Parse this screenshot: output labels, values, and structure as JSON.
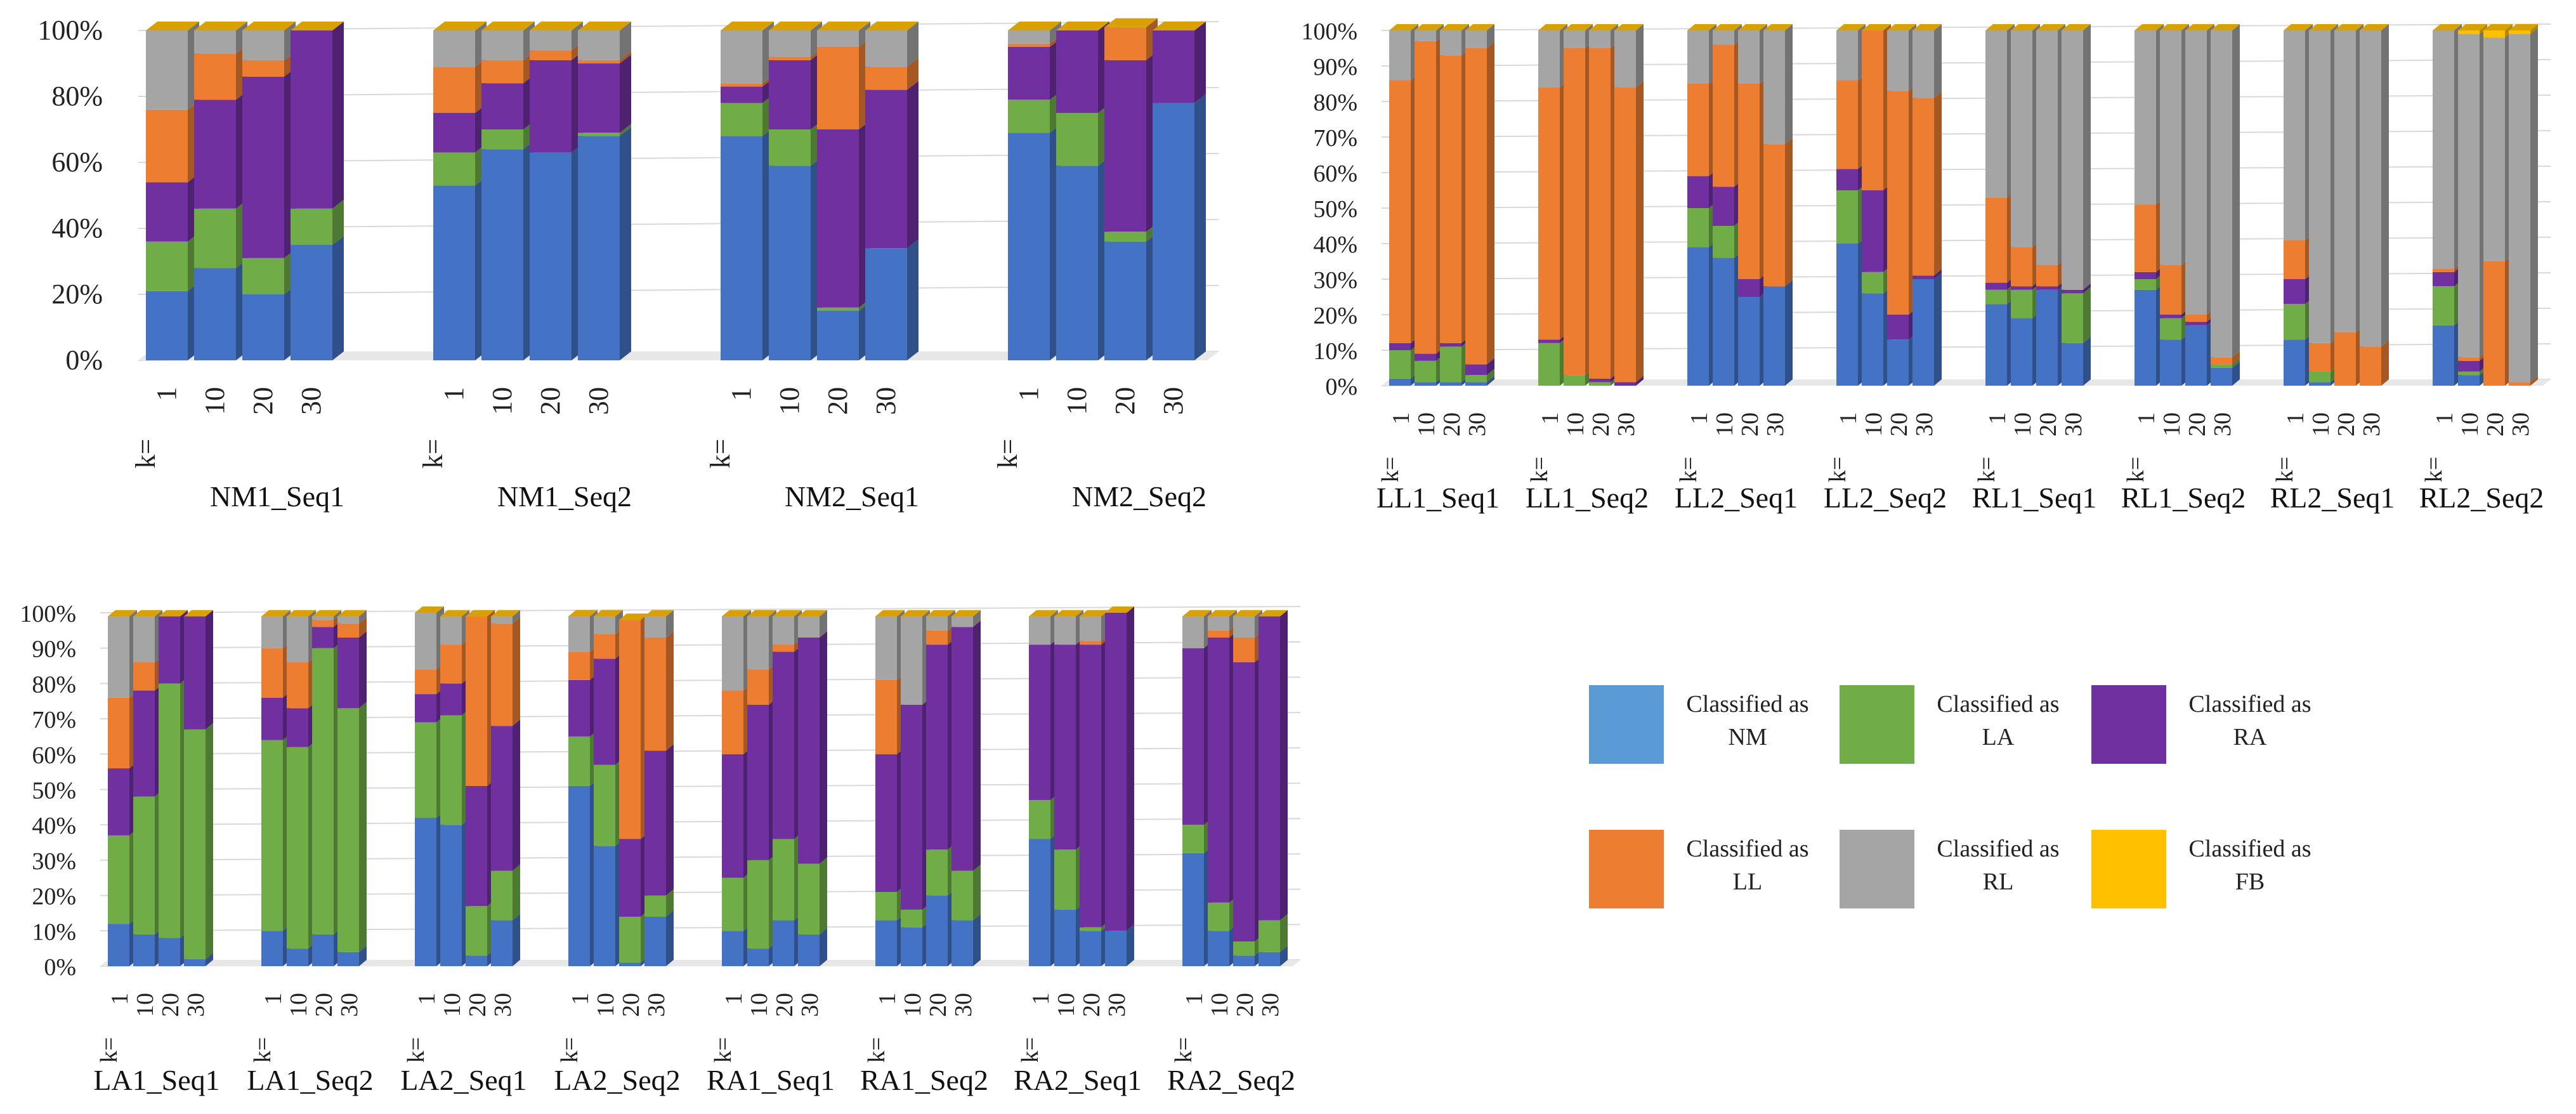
{
  "legend": [
    {
      "line1": "Classified as",
      "line2": "NM",
      "color": "#5B9BD5"
    },
    {
      "line1": "Classified as",
      "line2": "LA",
      "color": "#70AD47"
    },
    {
      "line1": "Classified as",
      "line2": "RA",
      "color": "#7030A0"
    },
    {
      "line1": "Classified as",
      "line2": "LL",
      "color": "#ED7D31"
    },
    {
      "line1": "Classified as",
      "line2": "RL",
      "color": "#A5A5A5"
    },
    {
      "line1": "Classified as",
      "line2": "FB",
      "color": "#FFC000"
    }
  ],
  "chart_data": [
    {
      "type": "bar",
      "stacked": true,
      "title": "",
      "ylim": [
        0,
        100
      ],
      "yticks": [
        "0%",
        "20%",
        "40%",
        "60%",
        "80%",
        "100%"
      ],
      "k_prefix": "k=",
      "k_labels": [
        "1",
        "10",
        "20",
        "30"
      ],
      "series_names": [
        "NM",
        "LA",
        "RA",
        "LL",
        "RL",
        "FB"
      ],
      "series_colors": [
        "#4472C4",
        "#70AD47",
        "#7030A0",
        "#ED7D31",
        "#A5A5A5",
        "#FFC000"
      ],
      "groups": [
        {
          "label": "NM1_Seq1",
          "bars": [
            [
              21,
              15,
              18,
              22,
              24,
              0
            ],
            [
              28,
              18,
              33,
              14,
              7,
              0
            ],
            [
              20,
              11,
              55,
              5,
              9,
              0
            ],
            [
              35,
              11,
              54,
              0,
              0,
              0
            ]
          ]
        },
        {
          "label": "NM1_Seq2",
          "bars": [
            [
              53,
              10,
              12,
              14,
              11,
              0
            ],
            [
              64,
              6,
              14,
              7,
              9,
              0
            ],
            [
              63,
              0,
              28,
              3,
              6,
              0
            ],
            [
              68,
              1,
              21,
              1,
              9,
              0
            ]
          ]
        },
        {
          "label": "NM2_Seq1",
          "bars": [
            [
              68,
              10,
              5,
              1,
              16,
              0
            ],
            [
              59,
              11,
              21,
              1,
              8,
              0
            ],
            [
              15,
              1,
              54,
              25,
              5,
              0
            ],
            [
              34,
              0,
              48,
              7,
              11,
              0
            ]
          ]
        },
        {
          "label": "NM2_Seq2",
          "bars": [
            [
              69,
              10,
              16,
              1,
              4,
              0
            ],
            [
              59,
              16,
              25,
              0,
              0,
              0
            ],
            [
              36,
              3,
              52,
              10,
              0,
              0
            ],
            [
              78,
              0,
              22,
              0,
              0,
              0
            ]
          ]
        }
      ]
    },
    {
      "type": "bar",
      "stacked": true,
      "title": "",
      "ylim": [
        0,
        100
      ],
      "yticks": [
        "0%",
        "10%",
        "20%",
        "30%",
        "40%",
        "50%",
        "60%",
        "70%",
        "80%",
        "90%",
        "100%"
      ],
      "k_prefix": "k=",
      "k_labels": [
        "1",
        "10",
        "20",
        "30"
      ],
      "series_names": [
        "NM",
        "LA",
        "RA",
        "LL",
        "RL",
        "FB"
      ],
      "series_colors": [
        "#4472C4",
        "#70AD47",
        "#7030A0",
        "#ED7D31",
        "#A5A5A5",
        "#FFC000"
      ],
      "groups": [
        {
          "label": "LL1_Seq1",
          "bars": [
            [
              2,
              8,
              2,
              74,
              14,
              0
            ],
            [
              1,
              6,
              2,
              88,
              3,
              0
            ],
            [
              1,
              10,
              1,
              81,
              7,
              0
            ],
            [
              1,
              2,
              3,
              89,
              5,
              0
            ]
          ]
        },
        {
          "label": "LL1_Seq2",
          "bars": [
            [
              0,
              12,
              1,
              71,
              16,
              0
            ],
            [
              0,
              3,
              0,
              92,
              5,
              0
            ],
            [
              0,
              1,
              1,
              93,
              5,
              0
            ],
            [
              0,
              0,
              1,
              83,
              16,
              0
            ]
          ]
        },
        {
          "label": "LL2_Seq1",
          "bars": [
            [
              39,
              11,
              9,
              26,
              15,
              0
            ],
            [
              36,
              9,
              11,
              40,
              4,
              0
            ],
            [
              25,
              0,
              5,
              55,
              15,
              0
            ],
            [
              28,
              0,
              0,
              40,
              32,
              0
            ]
          ]
        },
        {
          "label": "LL2_Seq2",
          "bars": [
            [
              40,
              15,
              6,
              25,
              14,
              0
            ],
            [
              26,
              6,
              23,
              45,
              0,
              0
            ],
            [
              13,
              0,
              7,
              63,
              17,
              0
            ],
            [
              30,
              0,
              1,
              50,
              19,
              0
            ]
          ]
        },
        {
          "label": "RL1_Seq1",
          "bars": [
            [
              23,
              4,
              2,
              24,
              47,
              0
            ],
            [
              19,
              8,
              1,
              11,
              61,
              0
            ],
            [
              27,
              0,
              1,
              6,
              66,
              0
            ],
            [
              12,
              14,
              1,
              0,
              73,
              0
            ]
          ]
        },
        {
          "label": "RL1_Seq2",
          "bars": [
            [
              27,
              3,
              2,
              19,
              49,
              0
            ],
            [
              13,
              6,
              1,
              14,
              66,
              0
            ],
            [
              17,
              0,
              1,
              2,
              80,
              0
            ],
            [
              5,
              1,
              0,
              2,
              92,
              0
            ]
          ]
        },
        {
          "label": "RL2_Seq1",
          "bars": [
            [
              13,
              10,
              7,
              11,
              59,
              0
            ],
            [
              1,
              3,
              0,
              8,
              88,
              0
            ],
            [
              0,
              0,
              0,
              15,
              85,
              0
            ],
            [
              0,
              0,
              0,
              11,
              89,
              0
            ]
          ]
        },
        {
          "label": "RL2_Seq2",
          "bars": [
            [
              17,
              11,
              4,
              1,
              67,
              0
            ],
            [
              3,
              1,
              3,
              1,
              91,
              1
            ],
            [
              0,
              0,
              0,
              35,
              63,
              2
            ],
            [
              0,
              0,
              0,
              1,
              98,
              1
            ]
          ]
        }
      ]
    },
    {
      "type": "bar",
      "stacked": true,
      "title": "",
      "ylim": [
        0,
        100
      ],
      "yticks": [
        "0%",
        "10%",
        "20%",
        "30%",
        "40%",
        "50%",
        "60%",
        "70%",
        "80%",
        "90%",
        "100%"
      ],
      "k_prefix": "k=",
      "k_labels": [
        "1",
        "10",
        "20",
        "30"
      ],
      "series_names": [
        "NM",
        "LA",
        "RA",
        "LL",
        "RL",
        "FB"
      ],
      "series_colors": [
        "#4472C4",
        "#70AD47",
        "#7030A0",
        "#ED7D31",
        "#A5A5A5",
        "#FFC000"
      ],
      "groups": [
        {
          "label": "LA1_Seq1",
          "bars": [
            [
              12,
              25,
              19,
              20,
              23,
              0
            ],
            [
              9,
              39,
              30,
              8,
              13,
              0
            ],
            [
              8,
              72,
              19,
              0,
              0,
              0
            ],
            [
              2,
              65,
              32,
              0,
              0,
              0
            ]
          ]
        },
        {
          "label": "LA1_Seq2",
          "bars": [
            [
              10,
              54,
              12,
              14,
              9,
              0
            ],
            [
              5,
              57,
              11,
              13,
              13,
              0
            ],
            [
              9,
              81,
              6,
              2,
              1,
              0
            ],
            [
              4,
              69,
              20,
              4,
              2,
              0
            ]
          ]
        },
        {
          "label": "LA2_Seq1",
          "bars": [
            [
              42,
              27,
              8,
              7,
              16,
              0
            ],
            [
              40,
              31,
              9,
              11,
              8,
              0
            ],
            [
              3,
              14,
              34,
              48,
              0,
              0
            ],
            [
              13,
              14,
              41,
              29,
              2,
              0
            ]
          ]
        },
        {
          "label": "LA2_Seq2",
          "bars": [
            [
              51,
              14,
              16,
              8,
              10,
              0
            ],
            [
              34,
              23,
              30,
              7,
              5,
              0
            ],
            [
              1,
              13,
              22,
              62,
              0,
              0
            ],
            [
              14,
              6,
              41,
              32,
              6,
              0
            ]
          ]
        },
        {
          "label": "RA1_Seq1",
          "bars": [
            [
              10,
              15,
              35,
              18,
              21,
              0
            ],
            [
              5,
              25,
              44,
              10,
              15,
              0
            ],
            [
              13,
              23,
              53,
              2,
              8,
              0
            ],
            [
              9,
              20,
              64,
              0,
              6,
              0
            ]
          ]
        },
        {
          "label": "RA1_Seq2",
          "bars": [
            [
              13,
              8,
              39,
              21,
              18,
              0
            ],
            [
              11,
              5,
              58,
              0,
              25,
              0
            ],
            [
              20,
              13,
              58,
              4,
              4,
              0
            ],
            [
              13,
              14,
              69,
              0,
              3,
              0
            ]
          ]
        },
        {
          "label": "RA2_Seq1",
          "bars": [
            [
              36,
              11,
              44,
              0,
              8,
              0
            ],
            [
              16,
              17,
              58,
              0,
              8,
              0
            ],
            [
              10,
              1,
              80,
              1,
              7,
              0
            ],
            [
              10,
              0,
              90,
              0,
              0,
              0
            ]
          ]
        },
        {
          "label": "RA2_Seq2",
          "bars": [
            [
              32,
              8,
              50,
              0,
              9,
              0
            ],
            [
              10,
              8,
              75,
              2,
              4,
              0
            ],
            [
              3,
              4,
              79,
              7,
              6,
              0
            ],
            [
              4,
              9,
              86,
              0,
              0,
              0
            ]
          ]
        }
      ]
    }
  ]
}
